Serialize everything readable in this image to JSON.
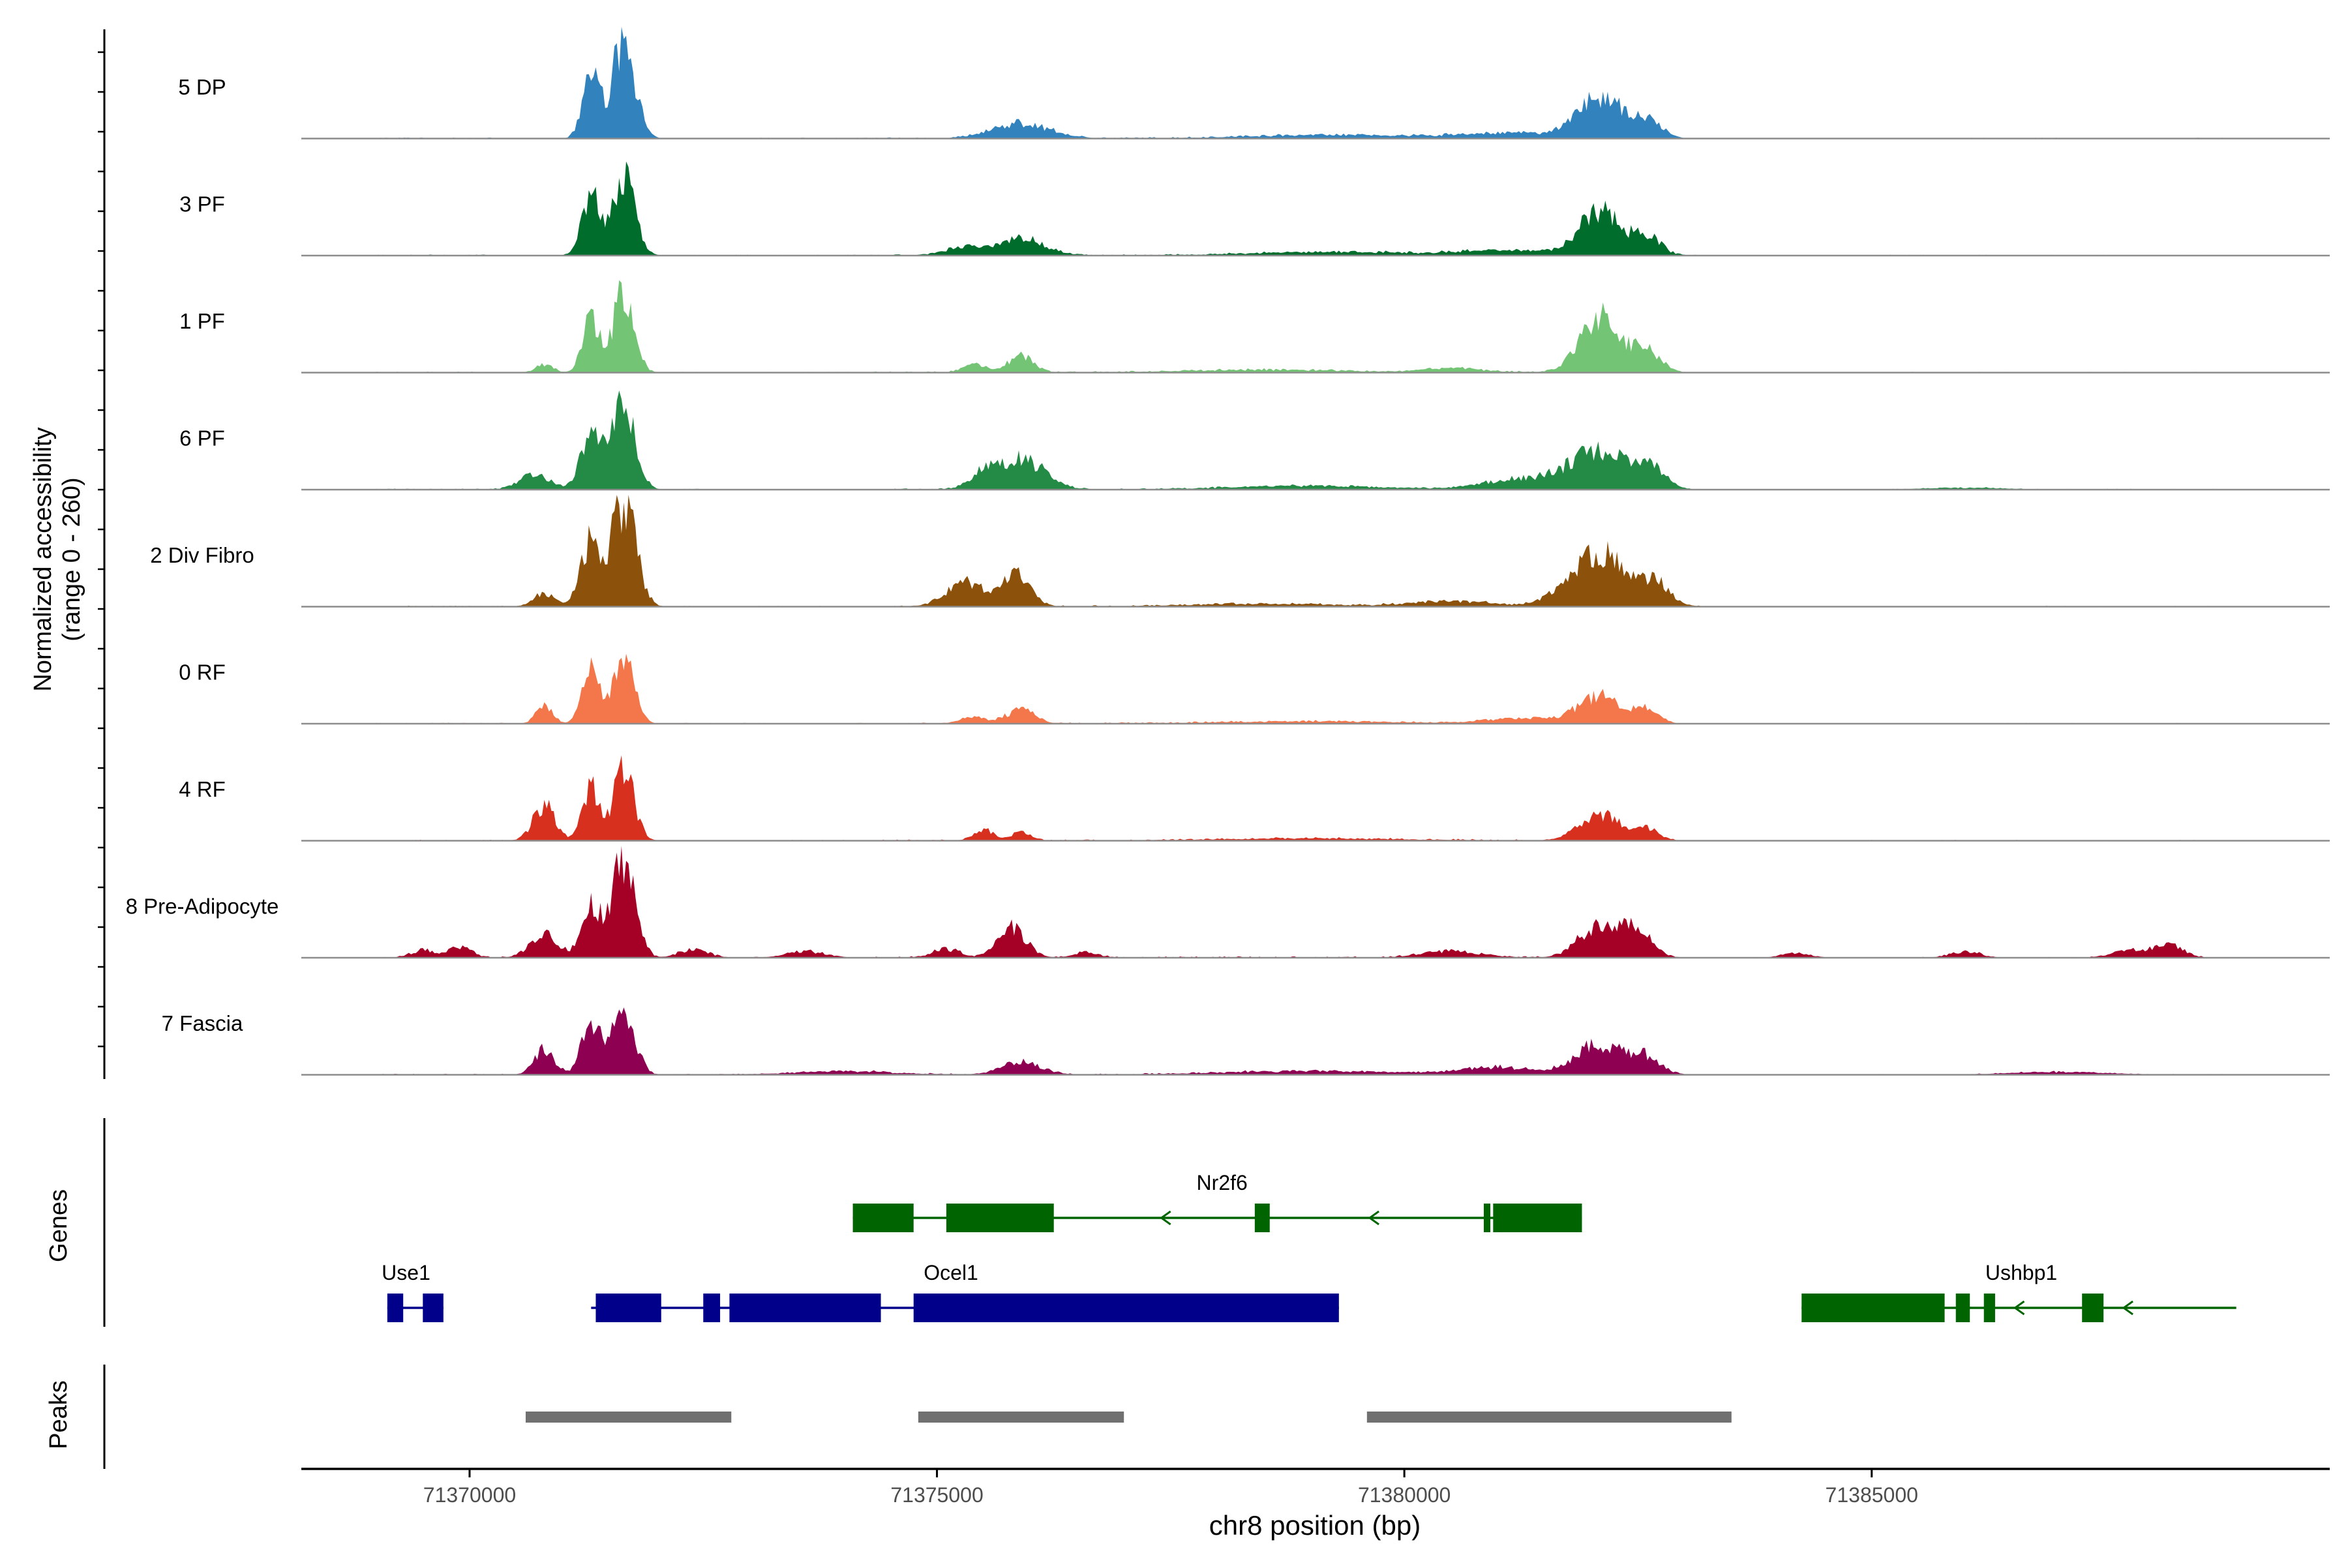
{
  "chart_data": {
    "type": "area",
    "title": "",
    "ylabel_line1": "Normalized accessibility",
    "ylabel_line2": "(range 0 - 260)",
    "xlabel": "chr8 position (bp)",
    "xlim": [
      71368200,
      71389900
    ],
    "ylim": [
      0,
      260
    ],
    "x_ticks": [
      "71370000",
      "71375000",
      "71380000",
      "71385000"
    ],
    "x_tick_values": [
      71370000,
      71375000,
      71380000,
      71385000
    ],
    "genes_label": "Genes",
    "peaks_label": "Peaks",
    "tracks": [
      {
        "name": "5 DP",
        "color": "#3182bd",
        "peaks": [
          [
            71371300,
            150,
            90
          ],
          [
            71371650,
            230,
            120
          ],
          [
            71375900,
            35,
            300
          ],
          [
            71382100,
            95,
            250
          ],
          [
            71382600,
            35,
            150
          ],
          [
            71381100,
            12,
            500
          ],
          [
            71379200,
            8,
            800
          ]
        ]
      },
      {
        "name": "3 PF",
        "color": "#006d2c",
        "peaks": [
          [
            71371300,
            140,
            100
          ],
          [
            71371650,
            175,
            120
          ],
          [
            71375900,
            40,
            250
          ],
          [
            71375300,
            18,
            200
          ],
          [
            71382100,
            105,
            220
          ],
          [
            71382600,
            45,
            140
          ],
          [
            71381100,
            12,
            500
          ],
          [
            71379200,
            8,
            800
          ]
        ]
      },
      {
        "name": "1 PF",
        "color": "#74c476",
        "peaks": [
          [
            71370800,
            20,
            90
          ],
          [
            71371300,
            120,
            90
          ],
          [
            71371650,
            190,
            110
          ],
          [
            71375900,
            40,
            130
          ],
          [
            71375400,
            20,
            120
          ],
          [
            71382100,
            125,
            220
          ],
          [
            71382600,
            50,
            140
          ],
          [
            71380500,
            10,
            300
          ],
          [
            71378500,
            6,
            800
          ]
        ]
      },
      {
        "name": "6 PF",
        "color": "#238b45",
        "peaks": [
          [
            71370700,
            35,
            160
          ],
          [
            71371300,
            130,
            110
          ],
          [
            71371650,
            210,
            120
          ],
          [
            71375900,
            70,
            250
          ],
          [
            71375500,
            30,
            150
          ],
          [
            71382100,
            90,
            300
          ],
          [
            71382650,
            40,
            150
          ],
          [
            71381300,
            25,
            400
          ],
          [
            71379000,
            8,
            800
          ],
          [
            71386000,
            4,
            400
          ]
        ]
      },
      {
        "name": "2 Div Fibro",
        "color": "#8c510a",
        "peaks": [
          [
            71370800,
            30,
            120
          ],
          [
            71371300,
            150,
            110
          ],
          [
            71371650,
            240,
            130
          ],
          [
            71375300,
            55,
            200
          ],
          [
            71375850,
            70,
            150
          ],
          [
            71382100,
            120,
            320
          ],
          [
            71382700,
            40,
            150
          ],
          [
            71380500,
            12,
            400
          ],
          [
            71378500,
            6,
            800
          ]
        ]
      },
      {
        "name": "0 RF",
        "color": "#f4774b",
        "peaks": [
          [
            71370800,
            40,
            90
          ],
          [
            71371300,
            140,
            90
          ],
          [
            71371650,
            150,
            110
          ],
          [
            71375900,
            35,
            140
          ],
          [
            71375400,
            15,
            140
          ],
          [
            71382100,
            65,
            220
          ],
          [
            71382600,
            30,
            120
          ],
          [
            71381300,
            12,
            400
          ],
          [
            71379000,
            5,
            900
          ]
        ]
      },
      {
        "name": "4 RF",
        "color": "#d7301f",
        "peaks": [
          [
            71370800,
            80,
            120
          ],
          [
            71371300,
            120,
            90
          ],
          [
            71371650,
            165,
            110
          ],
          [
            71375500,
            25,
            100
          ],
          [
            71375900,
            18,
            100
          ],
          [
            71382100,
            60,
            220
          ],
          [
            71382600,
            25,
            120
          ],
          [
            71379000,
            5,
            900
          ]
        ]
      },
      {
        "name": "8 Pre-Adipocyte",
        "color": "#a50026",
        "peaks": [
          [
            71369500,
            18,
            120
          ],
          [
            71369900,
            25,
            120
          ],
          [
            71370800,
            55,
            150
          ],
          [
            71371300,
            120,
            100
          ],
          [
            71371650,
            240,
            120
          ],
          [
            71372400,
            20,
            150
          ],
          [
            71373600,
            15,
            200
          ],
          [
            71375100,
            20,
            150
          ],
          [
            71375800,
            70,
            150
          ],
          [
            71376600,
            14,
            120
          ],
          [
            71380500,
            15,
            300
          ],
          [
            71382100,
            75,
            220
          ],
          [
            71382500,
            55,
            150
          ],
          [
            71384200,
            10,
            150
          ],
          [
            71386000,
            15,
            150
          ],
          [
            71387800,
            18,
            200
          ],
          [
            71388200,
            25,
            150
          ]
        ]
      },
      {
        "name": "7 Fascia",
        "color": "#8e0152",
        "peaks": [
          [
            71370800,
            60,
            110
          ],
          [
            71371300,
            120,
            100
          ],
          [
            71371650,
            150,
            120
          ],
          [
            71375900,
            30,
            200
          ],
          [
            71374000,
            8,
            500
          ],
          [
            71382100,
            70,
            260
          ],
          [
            71382600,
            35,
            150
          ],
          [
            71381000,
            15,
            400
          ],
          [
            71379000,
            8,
            900
          ],
          [
            71387000,
            6,
            500
          ]
        ]
      }
    ],
    "genes": [
      {
        "name": "Nr2f6",
        "row": 1,
        "strand": "-",
        "color": "#006400",
        "start": 71374100,
        "end": 71381900,
        "label_pos": 71378050,
        "exons": [
          [
            71374100,
            71374750
          ],
          [
            71375100,
            71376250
          ],
          [
            71378400,
            71378560
          ],
          [
            71380850,
            71380920
          ],
          [
            71380950,
            71381900
          ]
        ]
      },
      {
        "name": "Use1",
        "row": 2,
        "strand": "+",
        "color": "#00008b",
        "start": 71369120,
        "end": 71369720,
        "label_pos": 71369320,
        "exons": [
          [
            71369120,
            71369290
          ],
          [
            71369500,
            71369720
          ]
        ]
      },
      {
        "name": "Ocel1",
        "row": 2,
        "strand": "+",
        "color": "#00008b",
        "start": 71371300,
        "end": 71379300,
        "label_pos": 71375150,
        "exons": [
          [
            71371350,
            71372050
          ],
          [
            71372500,
            71372680
          ],
          [
            71372780,
            71374400
          ],
          [
            71374750,
            71379300
          ]
        ]
      },
      {
        "name": "Ushbp1",
        "row": 2,
        "strand": "-",
        "color": "#006400",
        "start": 71384250,
        "end": 71388900,
        "label_pos": 71386600,
        "exons": [
          [
            71384250,
            71385780
          ],
          [
            71385900,
            71386050
          ],
          [
            71386200,
            71386320
          ],
          [
            71387250,
            71387480
          ]
        ]
      }
    ],
    "peak_regions": [
      [
        71370600,
        71372800
      ],
      [
        71374800,
        71377000
      ],
      [
        71379600,
        71383500
      ]
    ]
  }
}
